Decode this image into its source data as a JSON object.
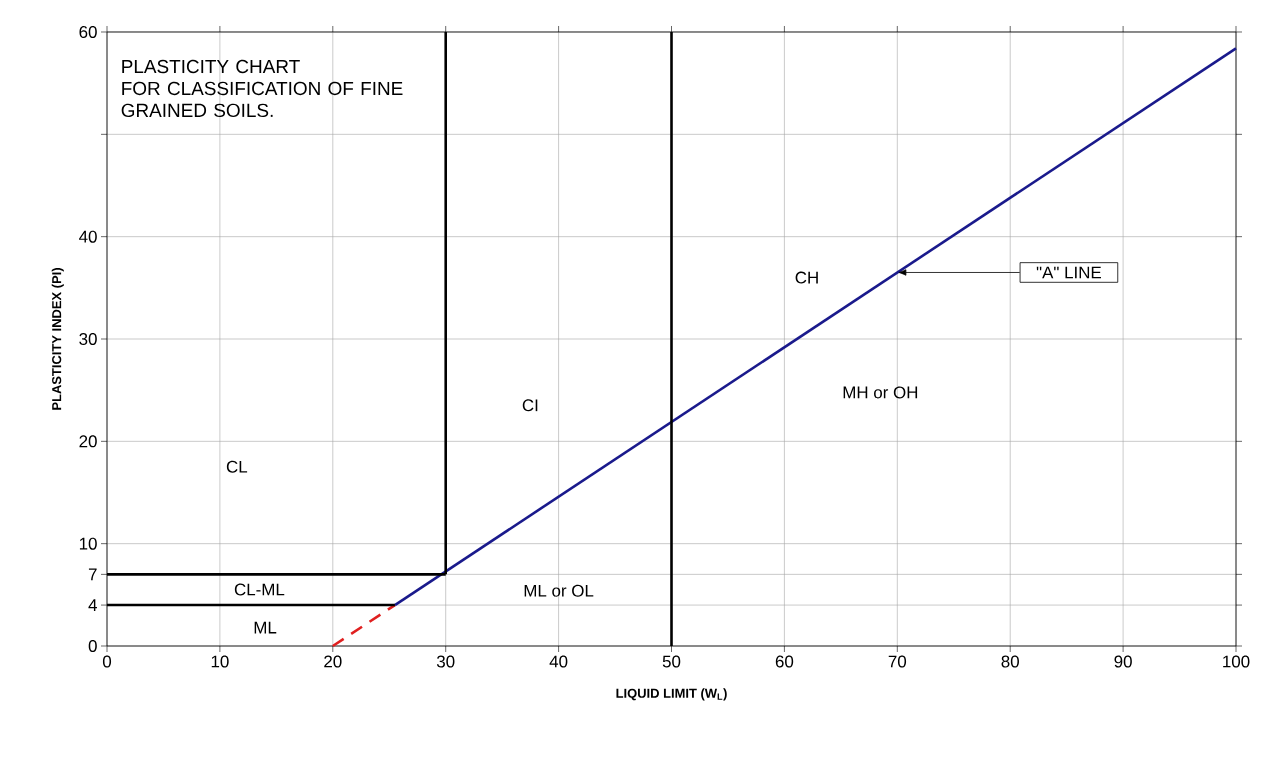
{
  "chart_data": {
    "type": "line",
    "title": "PLASTICITY CHART",
    "subtitle": "FOR CLASSIFICATION OF FINE GRAINED SOILS.",
    "xlabel": "LIQUID LIMIT (W$_{L}$)",
    "ylabel": "PLASTICITY INDEX (PI)",
    "xlim": [
      0,
      100
    ],
    "ylim": [
      0,
      60
    ],
    "xticks": [
      0,
      10,
      20,
      30,
      40,
      50,
      60,
      70,
      80,
      90,
      100
    ],
    "yticks": [
      0,
      4,
      7,
      10,
      20,
      30,
      40,
      {
        "value": 50,
        "label": null
      },
      60
    ],
    "grid": true,
    "marker": "none",
    "line_style": "solid",
    "series": [
      {
        "color": "#1a1a8c",
        "x": [
          25.5,
          100
        ],
        "values": [
          4,
          58.4
        ]
      },
      {
        "color": "#e02020",
        "x": [
          20,
          25.5
        ],
        "values": [
          0,
          4
        ],
        "line_style": "dashed"
      },
      {
        "color": "#000000",
        "x": [
          0,
          30
        ],
        "values": [
          7,
          7
        ]
      },
      {
        "color": "#000000",
        "x": [
          0,
          25.5
        ],
        "values": [
          4,
          4
        ]
      },
      {
        "color": "#000000",
        "x": [
          30,
          30
        ],
        "values": [
          7,
          60
        ]
      },
      {
        "color": "#000000",
        "x": [
          50,
          50
        ],
        "values": [
          0,
          60
        ]
      }
    ],
    "annotations": [
      "CL",
      "CL-ML",
      "ML",
      "CI",
      "ML or OL",
      "CH",
      "MH or OH",
      {
        "text": "\"A\" LINE",
        "x": 70,
        "y": 36.5
      }
    ]
  }
}
